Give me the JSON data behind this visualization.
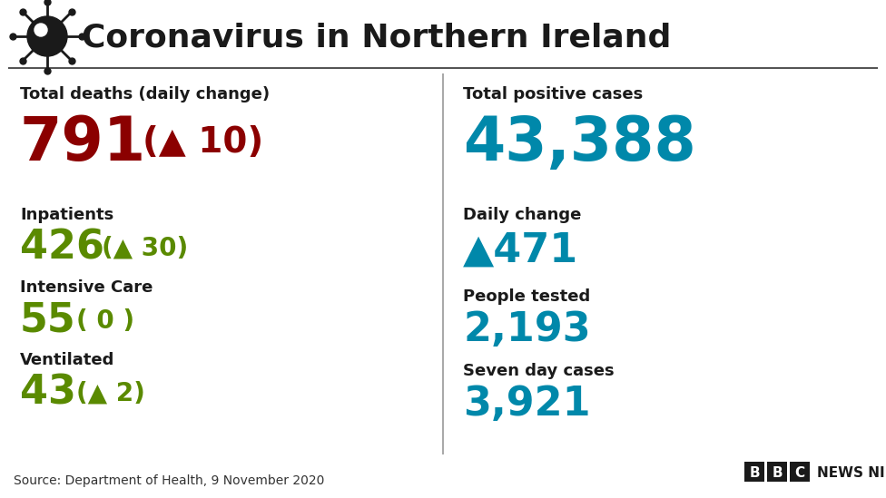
{
  "title": "Coronavirus in Northern Ireland",
  "bg_color": "#ffffff",
  "title_color": "#1a1a1a",
  "left_panel": {
    "total_deaths_label": "Total deaths (daily change)",
    "total_deaths_value": "791",
    "total_deaths_change": "(▲ 10)",
    "total_deaths_value_color": "#8b0000",
    "total_deaths_change_color": "#8b0000",
    "inpatients_label": "Inpatients",
    "inpatients_value": "426",
    "inpatients_change": "(▲ 30)",
    "inpatients_color": "#5a8a00",
    "intensive_label": "Intensive Care",
    "intensive_value": "55",
    "intensive_change": "( 0 )",
    "intensive_color": "#5a8a00",
    "ventilated_label": "Ventilated",
    "ventilated_value": "43",
    "ventilated_change": "(▲ 2)",
    "ventilated_color": "#5a8a00"
  },
  "right_panel": {
    "total_cases_label": "Total positive cases",
    "total_cases_value": "43,388",
    "total_cases_color": "#0088aa",
    "daily_change_label": "Daily change",
    "daily_change_value": "▲471",
    "daily_change_color": "#0088aa",
    "people_tested_label": "People tested",
    "people_tested_value": "2,193",
    "people_tested_color": "#0088aa",
    "seven_day_label": "Seven day cases",
    "seven_day_value": "3,921",
    "seven_day_color": "#0088aa"
  },
  "source_text": "Source: Department of Health, 9 November 2020",
  "bbc_text": "BBC",
  "news_ni_text": "NEWS NI"
}
